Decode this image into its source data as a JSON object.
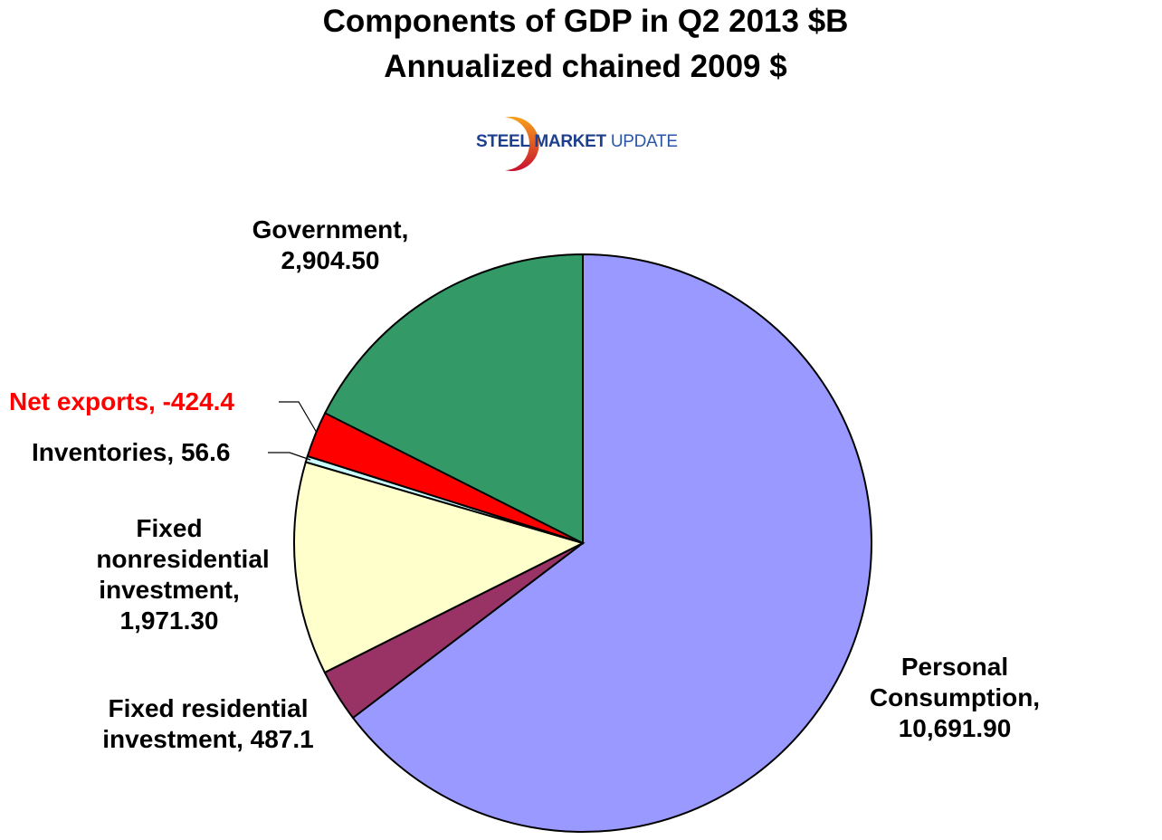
{
  "chart_data": {
    "type": "pie",
    "title": "Components of GDP in Q2 2013 $B",
    "subtitle": "Annualized chained 2009 $",
    "start_angle": "12 o'clock, clockwise",
    "slices": [
      {
        "label": "Personal Consumption",
        "value_text": "10,691.90",
        "value": 10691.9,
        "color": "#9999ff"
      },
      {
        "label": "Fixed residential investment",
        "value_text": "487.1",
        "value": 487.1,
        "color": "#993366"
      },
      {
        "label": "Fixed nonresidential investment",
        "value_text": "1,971.30",
        "value": 1971.3,
        "color": "#ffffcc"
      },
      {
        "label": "Inventories",
        "value_text": "56.6",
        "value": 56.6,
        "color": "#ccffff"
      },
      {
        "label": "Net exports",
        "value_text": "-424.4",
        "value": -424.4,
        "color": "#ff0000"
      },
      {
        "label": "Government",
        "value_text": "2,904.50",
        "value": 2904.5,
        "color": "#339966"
      }
    ]
  },
  "labels": {
    "pc": [
      "Personal",
      "Consumption,",
      "10,691.90"
    ],
    "res": [
      "Fixed residential",
      "investment, 487.1"
    ],
    "nonres": [
      "Fixed",
      "nonresidential",
      "investment,",
      "1,971.30"
    ],
    "inv": "Inventories, 56.6",
    "net": "Net exports, -424.4",
    "gov": [
      "Government,",
      "2,904.50"
    ]
  },
  "logo": {
    "word1": "STEEL",
    "word2": "MARKET",
    "word3": "UPDATE"
  }
}
